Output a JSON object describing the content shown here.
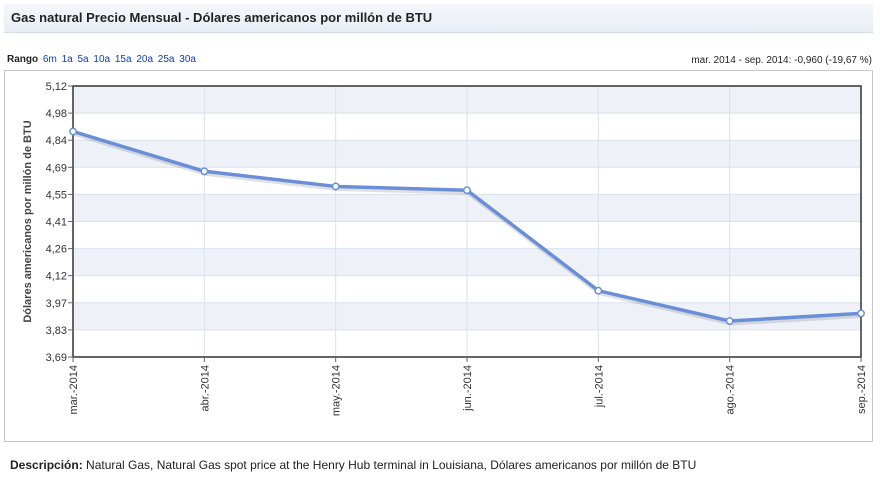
{
  "header": {
    "title": "Gas natural Precio Mensual - Dólares americanos por millón de BTU"
  },
  "range": {
    "label": "Rango",
    "options": [
      "6m",
      "1a",
      "5a",
      "10a",
      "15a",
      "20a",
      "25a",
      "30a"
    ]
  },
  "change_summary": "mar. 2014 - sep. 2014: -0,960 (-19,67 %)",
  "description": {
    "label": "Descripción:",
    "text": "Natural Gas, Natural Gas spot price at the Henry Hub terminal in Louisiana, Dólares americanos por millón de BTU"
  },
  "colors": {
    "line": "#6a8fd8",
    "band": "#eef2f8",
    "grid": "#d9e2ef",
    "frame": "#333333"
  },
  "chart_data": {
    "type": "line",
    "title": "",
    "xlabel": "",
    "ylabel": "Dólares americanos por millón de BTU",
    "categories": [
      "mar.-2014",
      "abr.-2014",
      "may.-2014",
      "jun.-2014",
      "jul.-2014",
      "ago.-2014",
      "sep.-2014"
    ],
    "values": [
      4.88,
      4.67,
      4.59,
      4.57,
      4.04,
      3.88,
      3.92
    ],
    "ylim": [
      3.69,
      5.12
    ],
    "y_ticks": [
      "3,69",
      "3,83",
      "3,97",
      "4,12",
      "4,26",
      "4,41",
      "4,55",
      "4,69",
      "4,84",
      "4,98",
      "5,12"
    ],
    "grid": true
  }
}
